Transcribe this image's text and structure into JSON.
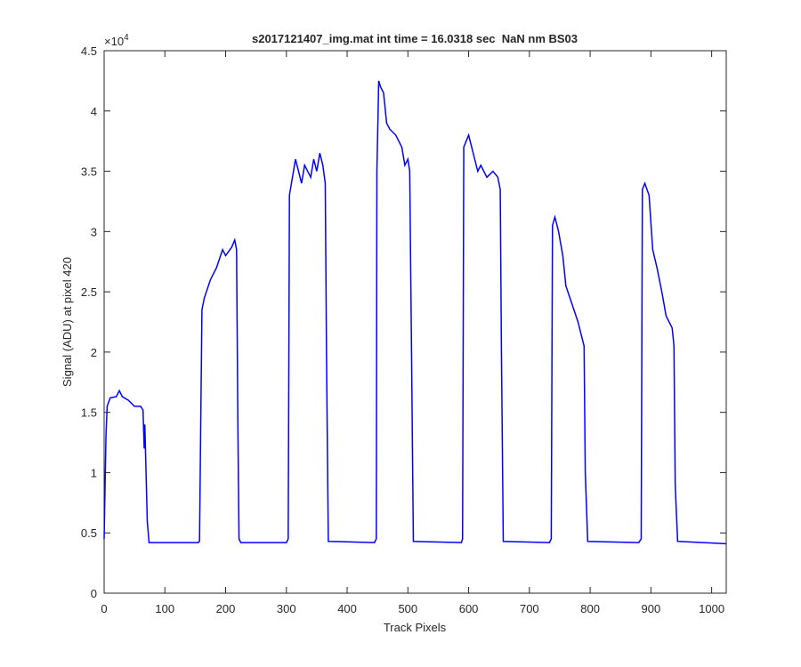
{
  "chart_data": {
    "type": "line",
    "title": "s2017121407_img.mat int time = 16.0318 sec  NaN nm BS03",
    "x_label": "Track Pixels",
    "y_label": "Signal (ADU) at pixel 420",
    "y_exponent": {
      "base": "×10",
      "power": "4"
    },
    "x": [
      0,
      3,
      5,
      10,
      20,
      25,
      30,
      40,
      50,
      60,
      64,
      66,
      67,
      69,
      71,
      74,
      155,
      157,
      161,
      165,
      175,
      185,
      195,
      200,
      210,
      215,
      218,
      220,
      222,
      225,
      300,
      303,
      305,
      310,
      315,
      320,
      325,
      330,
      340,
      345,
      350,
      355,
      360,
      364,
      366,
      369,
      445,
      448,
      449,
      452,
      455,
      460,
      465,
      470,
      480,
      490,
      495,
      500,
      503,
      506,
      509,
      588,
      590,
      592,
      600,
      605,
      610,
      615,
      620,
      630,
      640,
      648,
      652,
      654,
      657,
      733,
      736,
      738,
      742,
      748,
      755,
      760,
      770,
      780,
      785,
      790,
      792,
      796,
      880,
      884,
      886,
      890,
      897,
      903,
      910,
      918,
      925,
      935,
      938,
      940,
      944,
      1024
    ],
    "values": [
      0.45,
      1.3,
      1.55,
      1.62,
      1.63,
      1.68,
      1.63,
      1.6,
      1.55,
      1.55,
      1.52,
      1.2,
      1.4,
      1.0,
      0.6,
      0.42,
      0.42,
      0.43,
      2.35,
      2.45,
      2.6,
      2.7,
      2.85,
      2.8,
      2.87,
      2.93,
      2.85,
      1.5,
      0.45,
      0.42,
      0.42,
      0.45,
      3.3,
      3.45,
      3.6,
      3.5,
      3.4,
      3.55,
      3.45,
      3.6,
      3.5,
      3.65,
      3.55,
      3.4,
      2.0,
      0.43,
      0.42,
      0.45,
      3.5,
      4.25,
      4.2,
      4.15,
      3.9,
      3.85,
      3.8,
      3.7,
      3.55,
      3.6,
      3.5,
      2.0,
      0.43,
      0.42,
      0.45,
      3.7,
      3.8,
      3.7,
      3.6,
      3.5,
      3.55,
      3.45,
      3.5,
      3.45,
      3.35,
      2.0,
      0.43,
      0.42,
      0.45,
      3.05,
      3.12,
      3.0,
      2.8,
      2.55,
      2.4,
      2.25,
      2.15,
      2.05,
      1.0,
      0.43,
      0.42,
      0.45,
      3.35,
      3.4,
      3.3,
      2.85,
      2.7,
      2.5,
      2.3,
      2.2,
      2.05,
      0.9,
      0.43,
      0.41
    ],
    "color": "#0000ff",
    "xlim": [
      0,
      1024
    ],
    "xticks": [
      0,
      100,
      200,
      300,
      400,
      500,
      600,
      700,
      800,
      900,
      1000
    ],
    "ylim": [
      0,
      4.5
    ],
    "yticks": [
      0,
      0.5,
      1,
      1.5,
      2,
      2.5,
      3,
      3.5,
      4,
      4.5
    ],
    "grid": false
  }
}
